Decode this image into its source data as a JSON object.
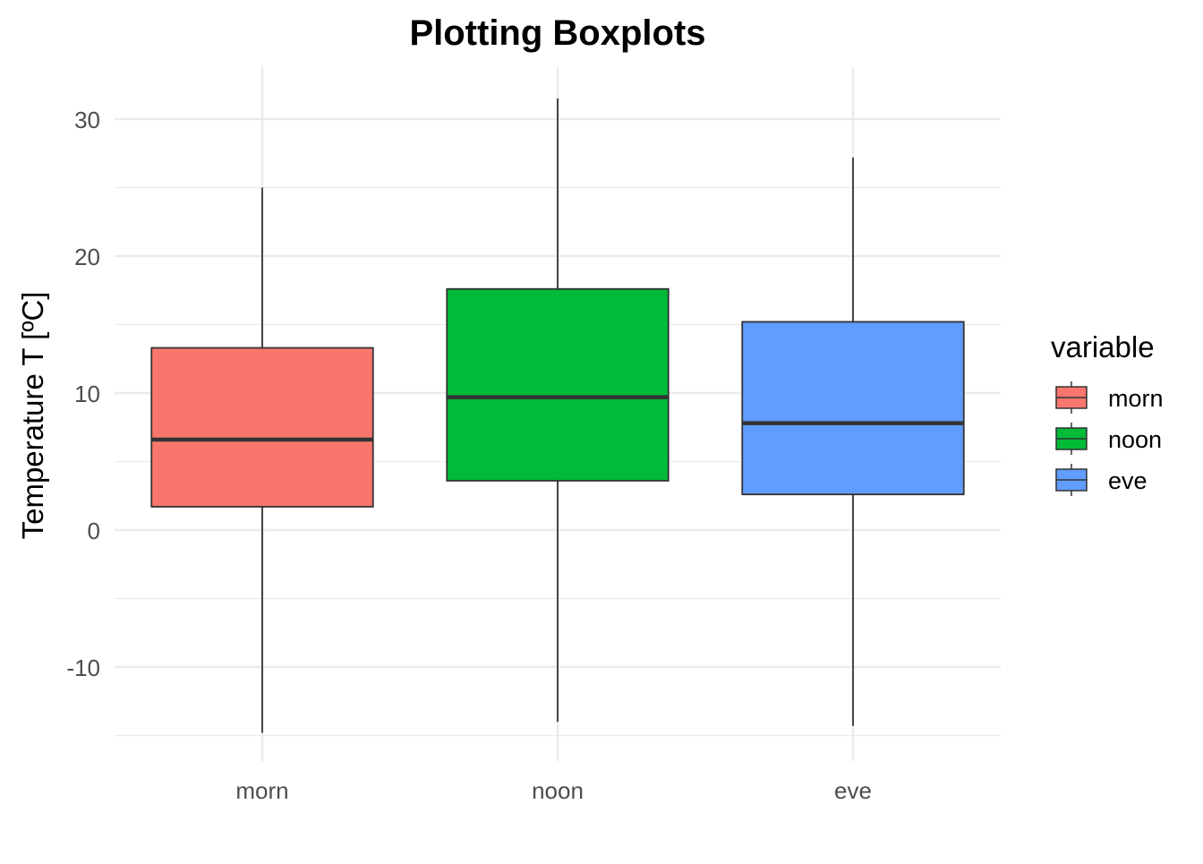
{
  "chart_data": {
    "type": "boxplot",
    "title": "Plotting Boxplots",
    "xlabel": "",
    "ylabel": "Temperature T [ºC]",
    "categories": [
      "morn",
      "noon",
      "eve"
    ],
    "y_ticks": [
      -10,
      0,
      10,
      20,
      30
    ],
    "y_tick_labels": [
      "-10",
      "0",
      "10",
      "20",
      "30"
    ],
    "ylim": [
      -16.6,
      34.1
    ],
    "grid": true,
    "legend": {
      "title": "variable",
      "position": "right",
      "entries": [
        "morn",
        "noon",
        "eve"
      ]
    },
    "series": [
      {
        "category": "morn",
        "min": -14.8,
        "q1": 1.7,
        "median": 6.6,
        "q3": 13.3,
        "max": 25.0,
        "color": "#F8766D"
      },
      {
        "category": "noon",
        "min": -14.0,
        "q1": 3.6,
        "median": 9.7,
        "q3": 17.6,
        "max": 31.5,
        "color": "#00BA38"
      },
      {
        "category": "eve",
        "min": -14.3,
        "q1": 2.6,
        "median": 7.8,
        "q3": 15.2,
        "max": 27.2,
        "color": "#619CFF"
      }
    ]
  }
}
